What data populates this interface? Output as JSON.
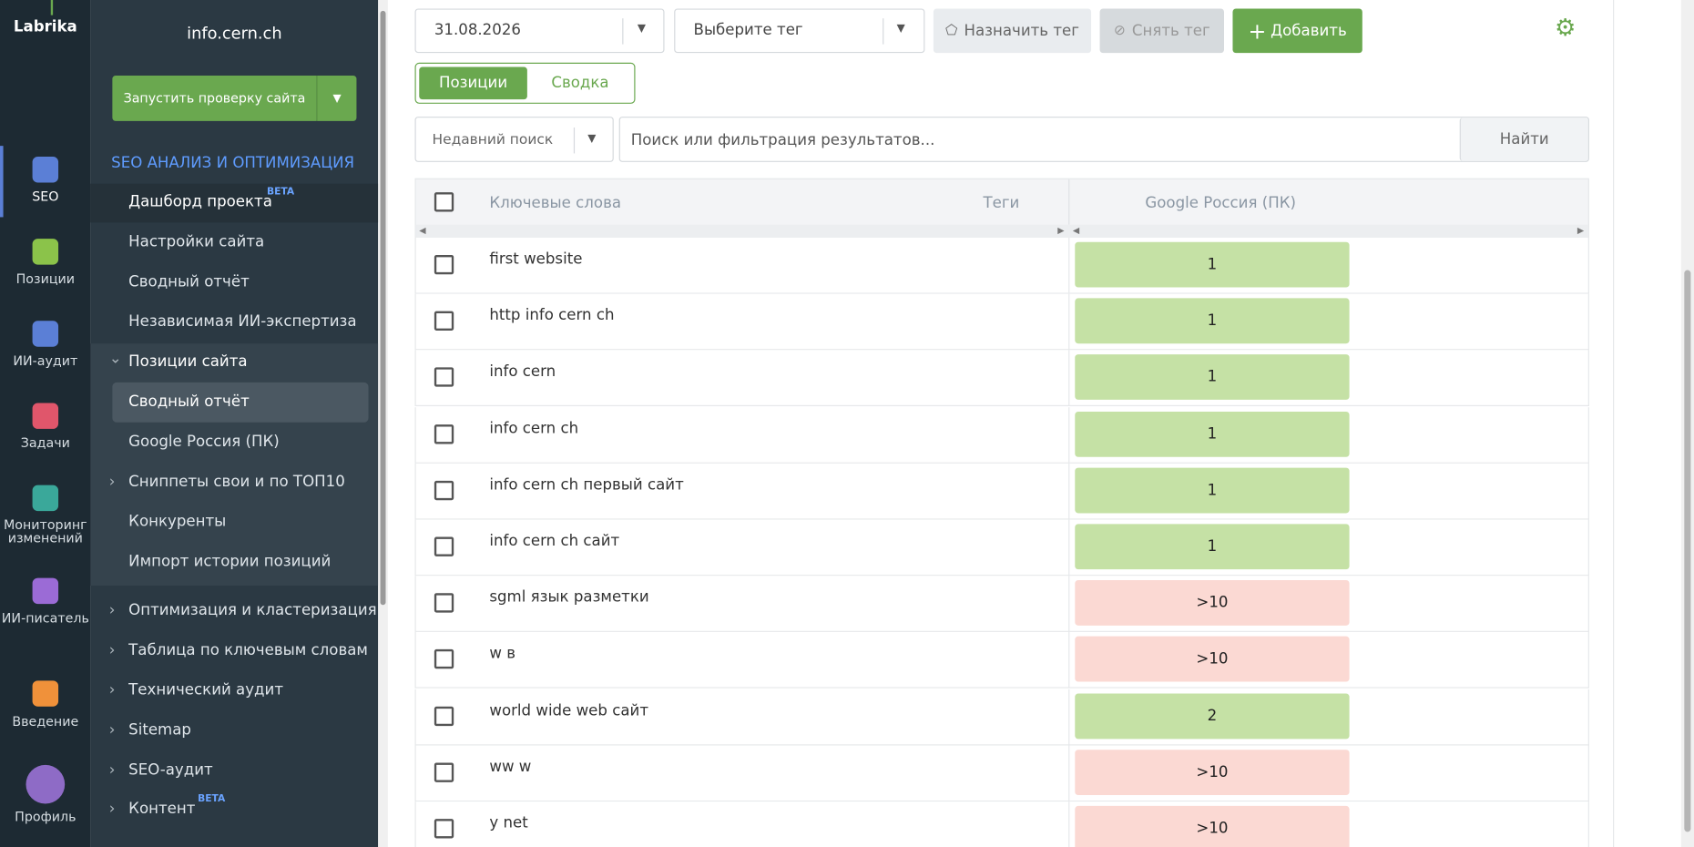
{
  "logo": "Labrika",
  "nav": [
    {
      "label": "SEO",
      "color": "#5b7fd6"
    },
    {
      "label": "Позиции",
      "color": "#8bc34a"
    },
    {
      "label": "ИИ-аудит",
      "color": "#5b7fd6"
    },
    {
      "label": "Задачи",
      "color": "#e0566b"
    },
    {
      "label": "Мониторинг изменений",
      "color": "#3aa89a"
    },
    {
      "label": "ИИ-писатель",
      "color": "#9b6bd6"
    },
    {
      "label": "Введение",
      "color": "#f0913a"
    },
    {
      "label": "Профиль",
      "color": "#8e6bc6"
    }
  ],
  "site": "info.cern.ch",
  "run_check": "Запустить проверку сайта",
  "section": "SEO АНАЛИЗ И ОПТИМИЗАЦИЯ",
  "menu": [
    {
      "label": "Дашборд проекта",
      "badge": "BETA"
    },
    {
      "label": "Настройки сайта"
    },
    {
      "label": "Сводный отчёт"
    },
    {
      "label": "Независимая ИИ-экспертиза"
    },
    {
      "label": "Позиции сайта"
    },
    {
      "label": "Сводный отчёт"
    },
    {
      "label": "Google Россия (ПК)"
    },
    {
      "label": "Сниппеты свои и по ТОП10"
    },
    {
      "label": "Конкуренты"
    },
    {
      "label": "Импорт истории позиций"
    },
    {
      "label": "Оптимизация и кластеризация"
    },
    {
      "label": "Таблица по ключевым словам"
    },
    {
      "label": "Технический аудит"
    },
    {
      "label": "Sitemap"
    },
    {
      "label": "SEO-аудит"
    },
    {
      "label": "Контент",
      "badge": "BETA"
    }
  ],
  "toolbar": {
    "date": "31.08.2026",
    "tag_select": "Выберите тег",
    "assign_tag": "Назначить тег",
    "remove_tag": "Снять тег",
    "add": "Добавить"
  },
  "tabs": [
    "Позиции",
    "Сводка"
  ],
  "search": {
    "recent": "Недавний поиск",
    "placeholder": "Поиск или фильтрация результатов...",
    "button": "Найти"
  },
  "table": {
    "headers": [
      "Ключевые слова",
      "Теги",
      "Google Россия (ПК)"
    ],
    "rows": [
      [
        "first website",
        "1"
      ],
      [
        "http info cern ch",
        "1"
      ],
      [
        "info cern",
        "1"
      ],
      [
        "info cern ch",
        "1"
      ],
      [
        "info cern ch первый сайт",
        "1"
      ],
      [
        "info cern ch сайт",
        "1"
      ],
      [
        "sgml язык разметки",
        ">10"
      ],
      [
        "w в",
        ">10"
      ],
      [
        "world wide web сайт",
        "2"
      ],
      [
        "ww w",
        ">10"
      ],
      [
        "y net",
        ">10"
      ]
    ]
  }
}
